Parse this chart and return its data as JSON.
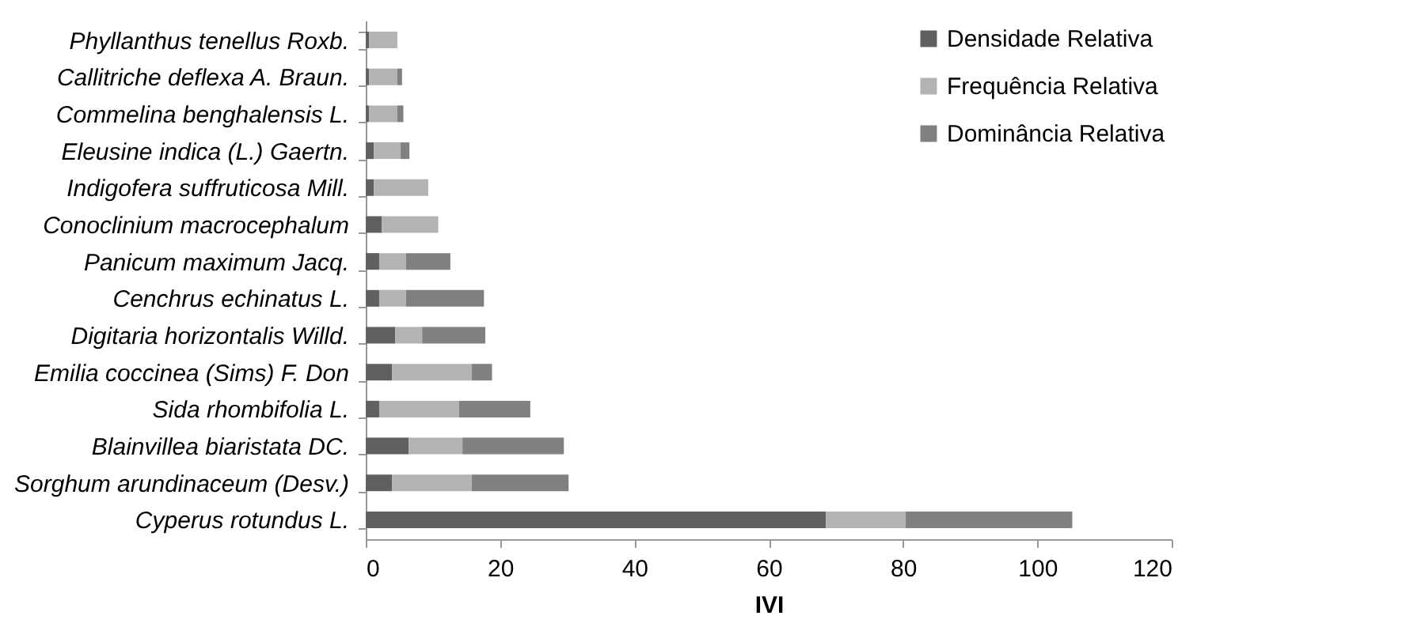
{
  "chart_data": {
    "type": "bar",
    "orientation": "horizontal",
    "stacked": true,
    "xlabel": "IVI",
    "categories": [
      "Phyllanthus tenellus Roxb.",
      "Callitriche deflexa A. Braun.",
      "Commelina benghalensis L.",
      "Eleusine indica (L.) Gaertn.",
      "Indigofera suffruticosa Mill.",
      "Conoclinium macrocephalum",
      "Panicum maximum Jacq.",
      "Cenchrus echinatus L.",
      "Digitaria horizontalis Willd.",
      "Emilia coccinea (Sims) F. Don",
      "Sida rhombifolia L.",
      "Blainvillea biaristata DC.",
      "Sorghum arundinaceum (Desv.)",
      "Cyperus rotundus L."
    ],
    "series": [
      {
        "name": "Densidade Relativa",
        "color": "#606060",
        "values": [
          0.5,
          0.5,
          0.5,
          1.2,
          1.2,
          2.4,
          2,
          2,
          4.4,
          3.9,
          2,
          6.4,
          3.9,
          68.5
        ]
      },
      {
        "name": "Frequência Relativa",
        "color": "#b3b3b3",
        "values": [
          4.2,
          4.2,
          4.2,
          4,
          8.1,
          8.4,
          4,
          4,
          4,
          11.9,
          11.9,
          8,
          11.9,
          11.9
        ]
      },
      {
        "name": "Dominância Relativa",
        "color": "#808080",
        "values": [
          0,
          0.7,
          0.9,
          1.3,
          0,
          0,
          6.6,
          11.6,
          9.4,
          3,
          10.6,
          15.1,
          14.4,
          24.8
        ]
      }
    ],
    "xlim": [
      0,
      120
    ],
    "xticks": [
      0,
      20,
      40,
      60,
      80,
      100,
      120
    ],
    "grid": false,
    "legend": "top right"
  }
}
